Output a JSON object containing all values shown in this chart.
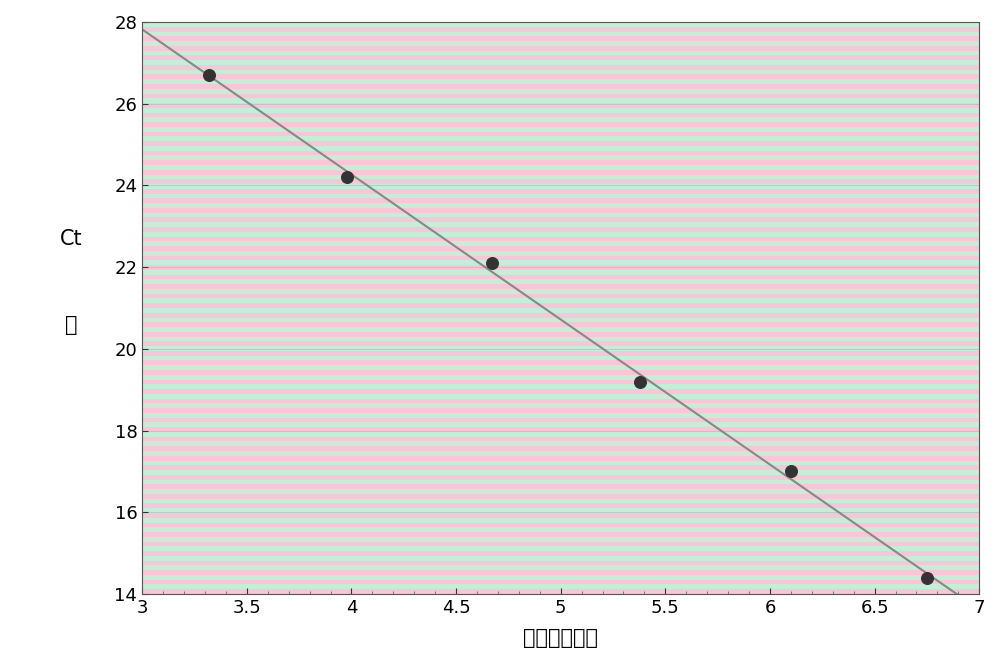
{
  "x_data": [
    3.32,
    3.98,
    4.67,
    5.38,
    6.1,
    6.75
  ],
  "y_data": [
    26.7,
    24.2,
    22.1,
    19.2,
    17.0,
    14.4
  ],
  "xlim": [
    3.0,
    7.0
  ],
  "ylim": [
    14.0,
    28.0
  ],
  "xticks": [
    3.0,
    3.5,
    4.0,
    4.5,
    5.0,
    5.5,
    6.0,
    6.5,
    7.0
  ],
  "yticks": [
    14,
    16,
    18,
    20,
    22,
    24,
    26,
    28
  ],
  "xlabel": "拷贝数的对数",
  "ylabel_line1": "Ct",
  "ylabel_line2": "値",
  "stripe_pink": "#f5c8d8",
  "stripe_green": "#c8ecd8",
  "line_color": "#888888",
  "dot_color": "#333333",
  "dot_size": 70,
  "line_width": 1.5,
  "axis_color": "#555555",
  "tick_color": "#333333",
  "font_size_label": 15,
  "font_size_tick": 13,
  "num_stripes": 120
}
